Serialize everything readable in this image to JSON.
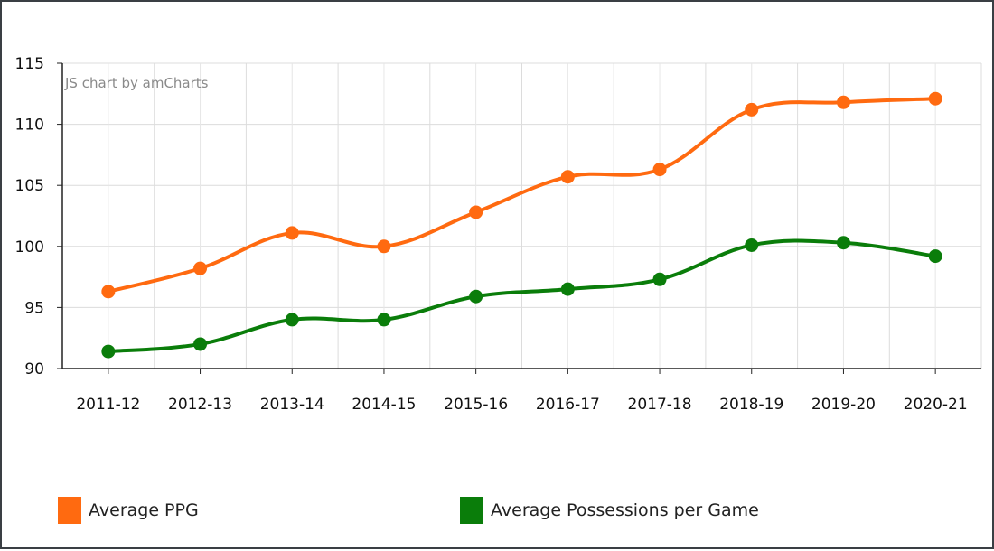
{
  "chart_data": {
    "type": "line",
    "credit": "JS chart by amCharts",
    "categories": [
      "2011-12",
      "2012-13",
      "2013-14",
      "2014-15",
      "2015-16",
      "2016-17",
      "2017-18",
      "2018-19",
      "2019-20",
      "2020-21"
    ],
    "series": [
      {
        "name": "Average PPG",
        "color": "#ff6a10",
        "values": [
          96.3,
          98.2,
          101.1,
          100.0,
          102.8,
          105.7,
          106.3,
          111.2,
          111.8,
          112.1
        ]
      },
      {
        "name": "Average Possessions per Game",
        "color": "#0a7d0a",
        "values": [
          91.4,
          92.0,
          94.0,
          94.0,
          95.9,
          96.5,
          97.3,
          100.1,
          100.3,
          99.2
        ]
      }
    ],
    "ylim": [
      90,
      115
    ],
    "yticks": [
      90,
      95,
      100,
      105,
      110,
      115
    ],
    "grid": true,
    "legend_position": "bottom"
  }
}
